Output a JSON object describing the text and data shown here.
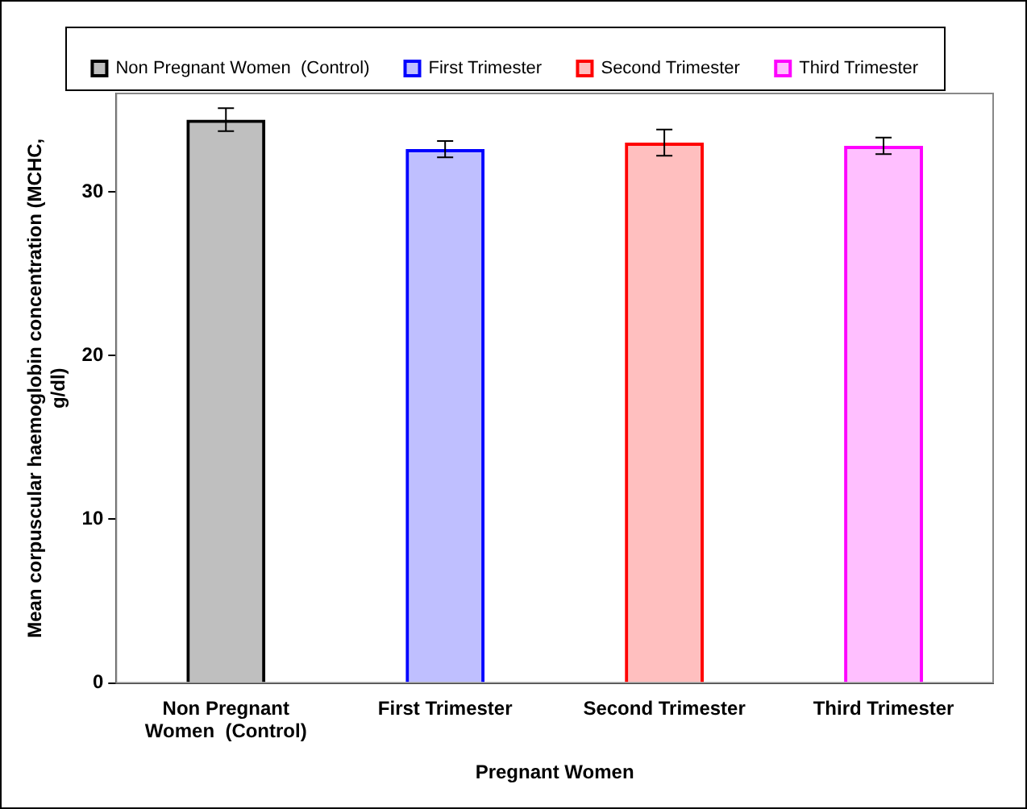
{
  "chart_data": {
    "type": "bar",
    "xlabel": "Pregnant Women",
    "ylabel": "Mean corpuscular haemoglobin concentration (MCHC,\ng/dl)",
    "categories": [
      "Non Pregnant Women  (Control)",
      "First Trimester",
      "Second Trimester",
      "Third Trimester"
    ],
    "series": [
      {
        "name": "Non Pregnant Women  (Control)",
        "color": "#000000",
        "values": [
          34.4,
          null,
          null,
          null
        ],
        "errors": [
          0.7,
          null,
          null,
          null
        ]
      },
      {
        "name": "First Trimester",
        "color": "#0000ff",
        "values": [
          null,
          32.6,
          null,
          null
        ],
        "errors": [
          null,
          0.5,
          null,
          null
        ]
      },
      {
        "name": "Second Trimester",
        "color": "#ff0000",
        "values": [
          null,
          null,
          33.0,
          null
        ],
        "errors": [
          null,
          null,
          0.8,
          null
        ]
      },
      {
        "name": "Third Trimester",
        "color": "#ff00ff",
        "values": [
          null,
          null,
          null,
          32.8
        ],
        "errors": [
          null,
          null,
          null,
          0.5
        ]
      }
    ],
    "ylim": [
      0,
      36
    ],
    "yticks": [
      0,
      10,
      20,
      30
    ],
    "grid": false,
    "legend": "top"
  }
}
